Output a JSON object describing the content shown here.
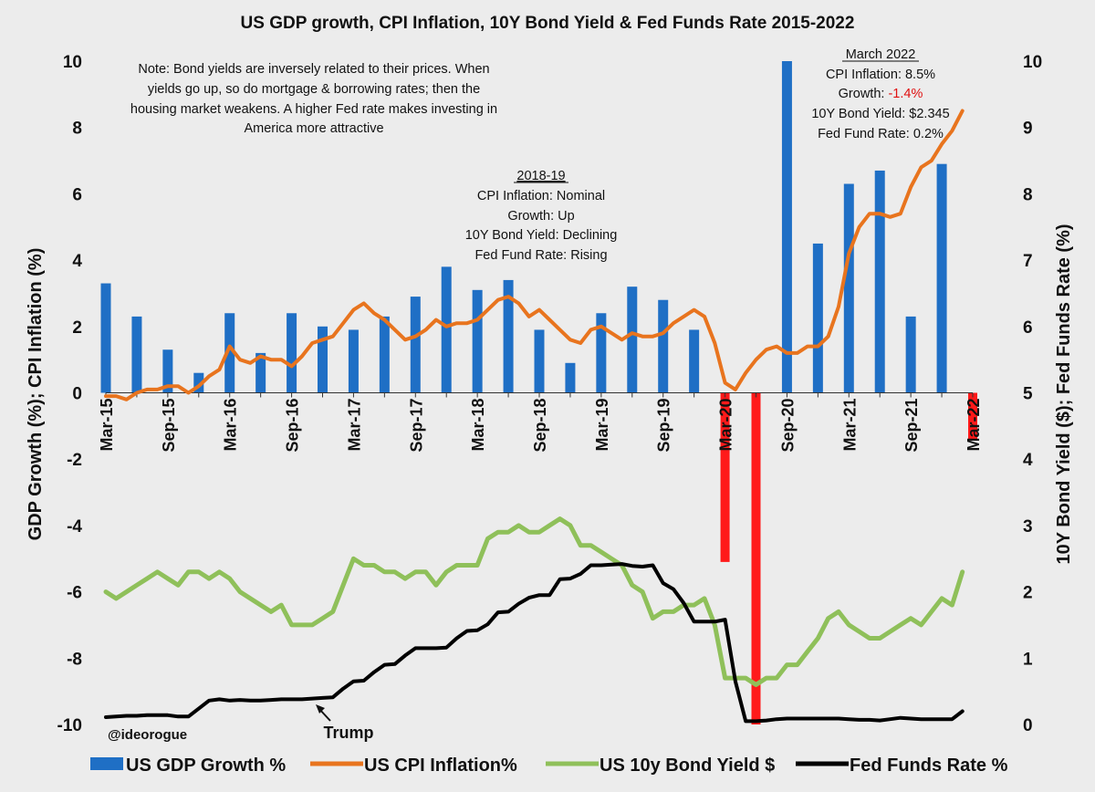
{
  "chart_data": {
    "type": "bar+line",
    "title": "US GDP growth, CPI Inflation, 10Y Bond Yield & Fed Funds Rate 2015-2022",
    "ylabel_left": "GDP Growth (%);  CPI Inflation (%)",
    "ylabel_right": "10Y Bond Yield ($); Fed Funds Rate (%)",
    "ylim_left": [
      -10,
      10
    ],
    "ylim_right": [
      0,
      10
    ],
    "yticks_left": [
      "10",
      "8",
      "6",
      "4",
      "2",
      "0",
      "-2",
      "-4",
      "-6",
      "-8",
      "-10"
    ],
    "yticks_right": [
      "10",
      "9",
      "8",
      "7",
      "6",
      "5",
      "4",
      "3",
      "2",
      "1",
      "0"
    ],
    "x_range_months": [
      0,
      84
    ],
    "x_tick_labels": [
      "Mar-15",
      "Sep-15",
      "Mar-16",
      "Sep-16",
      "Mar-17",
      "Sep-17",
      "Mar-18",
      "Sep-18",
      "Mar-19",
      "Sep-19",
      "Mar-20",
      "Sep-20",
      "Mar-21",
      "Sep-21",
      "Mar-22"
    ],
    "x_tick_months": [
      0,
      6,
      12,
      18,
      24,
      30,
      36,
      42,
      48,
      54,
      60,
      66,
      72,
      78,
      84
    ],
    "gdp_growth": {
      "name": "US GDP Growth %",
      "color": "#1f6fc5",
      "quarters_month": [
        0,
        3,
        6,
        9,
        12,
        15,
        18,
        21,
        24,
        27,
        30,
        33,
        36,
        39,
        42,
        45,
        48,
        51,
        54,
        57,
        60,
        63,
        66,
        69,
        72,
        75,
        78,
        81,
        84
      ],
      "values": [
        3.3,
        2.3,
        1.3,
        0.6,
        2.4,
        1.2,
        2.4,
        2.0,
        1.9,
        2.3,
        2.9,
        3.8,
        3.1,
        3.4,
        1.9,
        0.9,
        2.4,
        3.2,
        2.8,
        1.9,
        -5.1,
        -31.2,
        33.8,
        4.5,
        6.3,
        6.7,
        2.3,
        6.9,
        -1.4
      ]
    },
    "cpi_inflation": {
      "name": "US CPI Inflation%",
      "color": "#e8741e",
      "values": [
        -0.1,
        -0.1,
        -0.2,
        0.0,
        0.1,
        0.1,
        0.2,
        0.2,
        0.0,
        0.2,
        0.5,
        0.7,
        1.4,
        1.0,
        0.9,
        1.1,
        1.0,
        1.0,
        0.8,
        1.1,
        1.5,
        1.6,
        1.7,
        2.1,
        2.5,
        2.7,
        2.4,
        2.2,
        1.9,
        1.6,
        1.7,
        1.9,
        2.2,
        2.0,
        2.1,
        2.1,
        2.2,
        2.5,
        2.8,
        2.9,
        2.7,
        2.3,
        2.5,
        2.2,
        1.9,
        1.6,
        1.5,
        1.9,
        2.0,
        1.8,
        1.6,
        1.8,
        1.7,
        1.7,
        1.8,
        2.1,
        2.3,
        2.5,
        2.3,
        1.5,
        0.3,
        0.1,
        0.6,
        1.0,
        1.3,
        1.4,
        1.2,
        1.2,
        1.4,
        1.4,
        1.7,
        2.6,
        4.2,
        5.0,
        5.4,
        5.4,
        5.3,
        5.4,
        6.2,
        6.8,
        7.0,
        7.5,
        7.9,
        8.5
      ],
      "start_month": 0
    },
    "bond_yield": {
      "name": "US 10y Bond Yield $",
      "color": "#8fc05a",
      "values": [
        2.0,
        1.9,
        2.0,
        2.1,
        2.2,
        2.3,
        2.2,
        2.1,
        2.3,
        2.3,
        2.2,
        2.3,
        2.2,
        2.0,
        1.9,
        1.8,
        1.7,
        1.8,
        1.5,
        1.5,
        1.5,
        1.6,
        1.7,
        2.1,
        2.5,
        2.4,
        2.4,
        2.3,
        2.3,
        2.2,
        2.3,
        2.3,
        2.1,
        2.3,
        2.4,
        2.4,
        2.4,
        2.8,
        2.9,
        2.9,
        3.0,
        2.9,
        2.9,
        3.0,
        3.1,
        3.0,
        2.7,
        2.7,
        2.6,
        2.5,
        2.4,
        2.1,
        2.0,
        1.6,
        1.7,
        1.7,
        1.8,
        1.8,
        1.9,
        1.5,
        0.7,
        0.7,
        0.7,
        0.6,
        0.7,
        0.7,
        0.9,
        0.9,
        1.1,
        1.3,
        1.6,
        1.7,
        1.5,
        1.4,
        1.3,
        1.3,
        1.4,
        1.5,
        1.6,
        1.5,
        1.7,
        1.9,
        1.8,
        2.3
      ],
      "start_month": 0
    },
    "fed_funds": {
      "name": "Fed Funds Rate %",
      "color": "#000000",
      "values": [
        0.11,
        0.12,
        0.13,
        0.13,
        0.14,
        0.14,
        0.14,
        0.12,
        0.12,
        0.24,
        0.36,
        0.38,
        0.36,
        0.37,
        0.36,
        0.36,
        0.37,
        0.38,
        0.38,
        0.38,
        0.39,
        0.4,
        0.41,
        0.54,
        0.65,
        0.66,
        0.79,
        0.9,
        0.91,
        1.04,
        1.15,
        1.15,
        1.15,
        1.16,
        1.3,
        1.41,
        1.42,
        1.51,
        1.69,
        1.7,
        1.82,
        1.91,
        1.95,
        1.95,
        2.19,
        2.2,
        2.27,
        2.4,
        2.4,
        2.41,
        2.42,
        2.39,
        2.38,
        2.4,
        2.13,
        2.04,
        1.83,
        1.55,
        1.55,
        1.55,
        1.58,
        0.65,
        0.05,
        0.05,
        0.06,
        0.08,
        0.09,
        0.09,
        0.09,
        0.09,
        0.09,
        0.09,
        0.08,
        0.07,
        0.07,
        0.06,
        0.08,
        0.1,
        0.09,
        0.08,
        0.08,
        0.08,
        0.08,
        0.2
      ],
      "start_month": 0
    },
    "annotations": {
      "note": [
        "Note: Bond yields are inversely related to their prices. When",
        "yields go up, so do mortgage & borrowing rates; then the",
        "housing market weakens. A higher Fed rate makes investing in",
        "America more attractive"
      ],
      "box_2018": {
        "heading": "2018-19",
        "lines": [
          "CPI Inflation: Nominal",
          "Growth: Up",
          "10Y Bond Yield: Declining",
          "Fed Fund Rate: Rising"
        ]
      },
      "box_2022": {
        "heading": "March 2022",
        "line1": "CPI Inflation: 8.5%",
        "line2_prefix": "Growth: ",
        "line2_value": "-1.4%",
        "line3": "10Y Bond Yield: $2.345",
        "line4": "Fed Fund Rate: 0.2%"
      },
      "trump": "Trump",
      "handle": "@ideorogue"
    },
    "legend": [
      "US GDP Growth %",
      "US CPI Inflation%",
      "US 10y Bond Yield $",
      "Fed Funds Rate %"
    ],
    "highlight_color": "#ff1a1a"
  }
}
